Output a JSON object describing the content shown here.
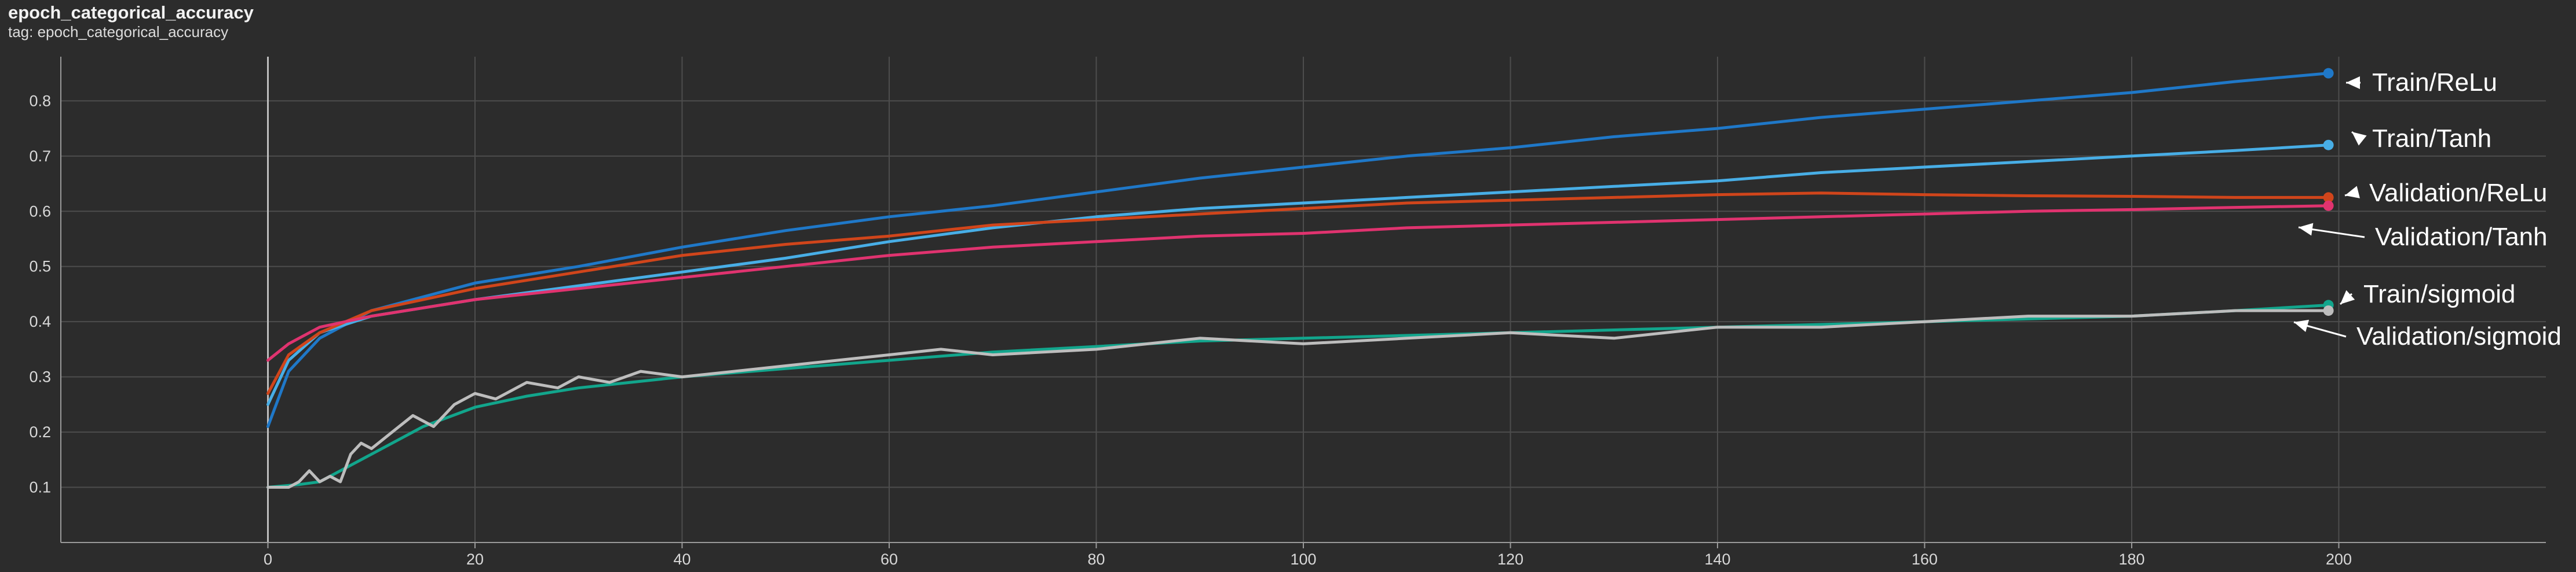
{
  "chart_data": {
    "type": "line",
    "title": "epoch_categorical_accuracy",
    "subtitle": "tag: epoch_categorical_accuracy",
    "xlabel": "",
    "ylabel": "",
    "xlim": [
      -20,
      220
    ],
    "ylim": [
      0,
      0.88
    ],
    "xticks": [
      "0",
      "20",
      "40",
      "60",
      "80",
      "100",
      "120",
      "140",
      "160",
      "180",
      "200"
    ],
    "yticks": [
      "0.1",
      "0.2",
      "0.3",
      "0.4",
      "0.5",
      "0.6",
      "0.7",
      "0.8"
    ],
    "grid": true,
    "legend": "end-of-line labels on the right",
    "series": [
      {
        "name": "Train/ReLu",
        "color": "#1f78c8",
        "x": [
          0,
          2,
          5,
          10,
          20,
          30,
          40,
          50,
          60,
          70,
          80,
          90,
          100,
          110,
          120,
          130,
          140,
          150,
          160,
          170,
          180,
          190,
          199
        ],
        "y": [
          0.21,
          0.31,
          0.37,
          0.42,
          0.47,
          0.5,
          0.535,
          0.565,
          0.59,
          0.61,
          0.635,
          0.66,
          0.68,
          0.7,
          0.715,
          0.735,
          0.75,
          0.77,
          0.785,
          0.8,
          0.815,
          0.835,
          0.85
        ]
      },
      {
        "name": "Train/Tanh",
        "color": "#48aee6",
        "x": [
          0,
          2,
          5,
          10,
          20,
          30,
          40,
          50,
          60,
          70,
          80,
          90,
          100,
          110,
          120,
          130,
          140,
          150,
          160,
          170,
          180,
          190,
          199
        ],
        "y": [
          0.25,
          0.33,
          0.38,
          0.41,
          0.44,
          0.465,
          0.49,
          0.515,
          0.545,
          0.57,
          0.59,
          0.605,
          0.615,
          0.625,
          0.635,
          0.645,
          0.655,
          0.67,
          0.68,
          0.69,
          0.7,
          0.71,
          0.72
        ]
      },
      {
        "name": "Validation/ReLu",
        "color": "#d0451b",
        "x": [
          0,
          2,
          5,
          10,
          20,
          30,
          40,
          50,
          60,
          70,
          80,
          90,
          100,
          110,
          120,
          130,
          140,
          150,
          160,
          170,
          180,
          190,
          199
        ],
        "y": [
          0.27,
          0.34,
          0.38,
          0.42,
          0.46,
          0.49,
          0.52,
          0.54,
          0.555,
          0.575,
          0.585,
          0.595,
          0.605,
          0.615,
          0.62,
          0.625,
          0.63,
          0.633,
          0.63,
          0.628,
          0.627,
          0.625,
          0.625
        ]
      },
      {
        "name": "Validation/Tanh",
        "color": "#e0336f",
        "x": [
          0,
          2,
          5,
          10,
          20,
          30,
          40,
          50,
          60,
          70,
          80,
          90,
          100,
          110,
          120,
          130,
          140,
          150,
          160,
          170,
          180,
          190,
          199
        ],
        "y": [
          0.33,
          0.36,
          0.39,
          0.41,
          0.44,
          0.46,
          0.48,
          0.5,
          0.52,
          0.535,
          0.545,
          0.555,
          0.56,
          0.57,
          0.575,
          0.58,
          0.585,
          0.59,
          0.595,
          0.6,
          0.603,
          0.607,
          0.61
        ]
      },
      {
        "name": "Train/sigmoid",
        "color": "#12a58c",
        "x": [
          0,
          3,
          5,
          8,
          10,
          15,
          20,
          25,
          30,
          40,
          50,
          60,
          70,
          80,
          90,
          100,
          110,
          120,
          130,
          140,
          150,
          160,
          170,
          180,
          190,
          199
        ],
        "y": [
          0.1,
          0.105,
          0.11,
          0.14,
          0.16,
          0.21,
          0.245,
          0.265,
          0.28,
          0.3,
          0.315,
          0.33,
          0.345,
          0.355,
          0.365,
          0.37,
          0.375,
          0.38,
          0.385,
          0.39,
          0.395,
          0.4,
          0.405,
          0.41,
          0.42,
          0.43
        ]
      },
      {
        "name": "Validation/sigmoid",
        "color": "#bdbdbd",
        "x": [
          0,
          2,
          3,
          4,
          5,
          6,
          7,
          8,
          9,
          10,
          12,
          14,
          16,
          18,
          20,
          22,
          25,
          28,
          30,
          33,
          36,
          40,
          45,
          50,
          55,
          60,
          65,
          70,
          80,
          90,
          100,
          110,
          120,
          130,
          140,
          150,
          160,
          170,
          180,
          190,
          199
        ],
        "y": [
          0.1,
          0.1,
          0.11,
          0.13,
          0.11,
          0.12,
          0.11,
          0.16,
          0.18,
          0.17,
          0.2,
          0.23,
          0.21,
          0.25,
          0.27,
          0.26,
          0.29,
          0.28,
          0.3,
          0.29,
          0.31,
          0.3,
          0.31,
          0.32,
          0.33,
          0.34,
          0.35,
          0.34,
          0.35,
          0.37,
          0.36,
          0.37,
          0.38,
          0.37,
          0.39,
          0.39,
          0.4,
          0.41,
          0.41,
          0.42,
          0.42
        ]
      }
    ]
  }
}
